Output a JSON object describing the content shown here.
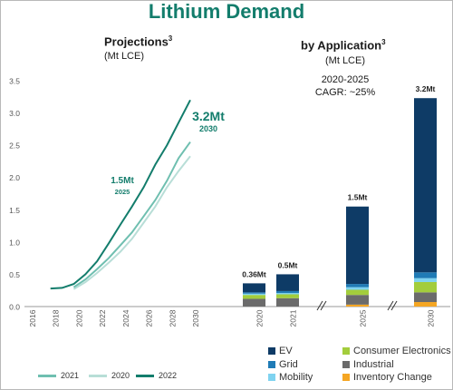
{
  "title": "Lithium Demand",
  "left_panel": {
    "heading": "Projections",
    "heading_sup": "3",
    "unit": "(Mt LCE)"
  },
  "right_panel": {
    "heading": "by Application",
    "heading_sup": "3",
    "unit": "(Mt LCE)",
    "cagr_line1": "2020-2025",
    "cagr_line2": "CAGR: ~25%"
  },
  "chart_data": [
    {
      "type": "line",
      "title": "Projections",
      "ylim": [
        0,
        3.5
      ],
      "yticks": [
        "0.0",
        "0.5",
        "1.0",
        "1.5",
        "2.0",
        "2.5",
        "3.0",
        "3.5"
      ],
      "xticks": [
        "2016",
        "2018",
        "2020",
        "2022",
        "2024",
        "2026",
        "2028",
        "2030"
      ],
      "series": [
        {
          "name": "2022",
          "color": "#137d6c",
          "x": [
            2018,
            2019,
            2020,
            2021,
            2022,
            2023,
            2024,
            2025,
            2026,
            2027,
            2028,
            2029,
            2030
          ],
          "values": [
            0.28,
            0.29,
            0.35,
            0.5,
            0.7,
            0.98,
            1.27,
            1.55,
            1.85,
            2.2,
            2.5,
            2.85,
            3.2
          ]
        },
        {
          "name": "2021",
          "color": "#6fbfb0",
          "x": [
            2020,
            2021,
            2022,
            2023,
            2024,
            2025,
            2026,
            2027,
            2028,
            2029,
            2030
          ],
          "values": [
            0.3,
            0.42,
            0.58,
            0.75,
            0.95,
            1.15,
            1.4,
            1.65,
            1.95,
            2.3,
            2.55
          ]
        },
        {
          "name": "2020",
          "color": "#b8ded7",
          "x": [
            2020,
            2021,
            2022,
            2023,
            2024,
            2025,
            2026,
            2027,
            2028,
            2029,
            2030
          ],
          "values": [
            0.27,
            0.38,
            0.52,
            0.68,
            0.85,
            1.05,
            1.3,
            1.55,
            1.85,
            2.1,
            2.33
          ]
        }
      ],
      "annotations": [
        {
          "text": "1.5Mt",
          "subtext": "2025"
        },
        {
          "text": "3.2Mt",
          "subtext": "2030"
        }
      ]
    },
    {
      "type": "bar",
      "stacked": true,
      "title": "by Application",
      "categories": [
        "2020",
        "2021",
        "2025",
        "2030"
      ],
      "totals_labels": [
        "0.36Mt",
        "0.5Mt",
        "1.5Mt",
        "3.2Mt"
      ],
      "series": [
        {
          "name": "Inventory Change",
          "color": "#f5a623",
          "values": [
            0.0,
            0.0,
            0.03,
            0.07
          ]
        },
        {
          "name": "Industrial",
          "color": "#6b6b6b",
          "values": [
            0.12,
            0.13,
            0.15,
            0.15
          ]
        },
        {
          "name": "Consumer Electronics",
          "color": "#a3cd3c",
          "values": [
            0.06,
            0.06,
            0.08,
            0.16
          ]
        },
        {
          "name": "Mobility",
          "color": "#7fd3f0",
          "values": [
            0.02,
            0.02,
            0.04,
            0.06
          ]
        },
        {
          "name": "Grid",
          "color": "#1f7bb6",
          "values": [
            0.02,
            0.03,
            0.05,
            0.09
          ]
        },
        {
          "name": "EV",
          "color": "#0e3b66",
          "values": [
            0.14,
            0.26,
            1.2,
            2.7
          ]
        }
      ]
    }
  ],
  "legend_lines": [
    {
      "name": "2021",
      "color": "#6fbfb0"
    },
    {
      "name": "2020",
      "color": "#b8ded7"
    },
    {
      "name": "2022",
      "color": "#137d6c"
    }
  ],
  "legend_bars": [
    {
      "name": "EV",
      "color": "#0e3b66"
    },
    {
      "name": "Grid",
      "color": "#1f7bb6"
    },
    {
      "name": "Mobility",
      "color": "#7fd3f0"
    },
    {
      "name": "Consumer Electronics",
      "color": "#a3cd3c"
    },
    {
      "name": "Industrial",
      "color": "#6b6b6b"
    },
    {
      "name": "Inventory Change",
      "color": "#f5a623"
    }
  ]
}
